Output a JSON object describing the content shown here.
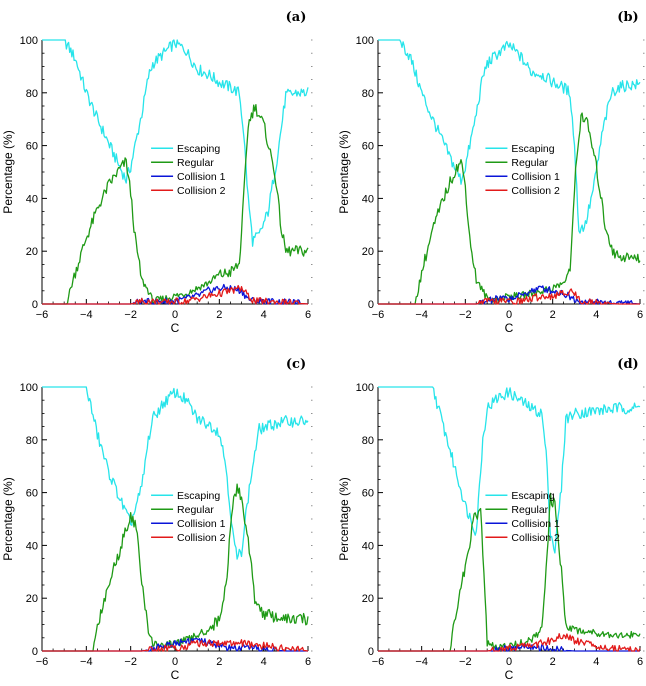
{
  "colors": {
    "escaping": "#27e4ea",
    "regular": "#1f9a16",
    "collision1": "#0a14d8",
    "collision2": "#e21a1a"
  },
  "chart_data": [
    {
      "type": "line",
      "label": "(a)",
      "xlabel": "C",
      "ylabel": "Percentage (%)",
      "xlim": [
        -6,
        6
      ],
      "ylim": [
        0,
        100
      ],
      "xticks": [
        -6,
        -4,
        -2,
        0,
        2,
        4,
        6
      ],
      "yticks": [
        0,
        20,
        40,
        60,
        80,
        100
      ],
      "legend_location": "center",
      "series": [
        {
          "name": "Escaping",
          "color_key": "escaping",
          "x": [
            -6,
            -5,
            -4.5,
            -4,
            -3.5,
            -3,
            -2.5,
            -2.2,
            -2,
            -1.5,
            -1.2,
            -1,
            -0.5,
            0,
            0.5,
            1,
            1.5,
            2,
            2.5,
            2.9,
            3.1,
            3.3,
            3.5,
            3.8,
            4.2,
            4.6,
            5,
            5.5,
            6
          ],
          "y": [
            100,
            100,
            93,
            80,
            70,
            61,
            52,
            47,
            52,
            72,
            86,
            91,
            95,
            99,
            96,
            89,
            87,
            84,
            82,
            80,
            65,
            40,
            24,
            26,
            35,
            55,
            79,
            80,
            80
          ]
        },
        {
          "name": "Regular",
          "color_key": "regular",
          "x": [
            -6,
            -4.9,
            -4.5,
            -4,
            -3.5,
            -3,
            -2.5,
            -2.2,
            -2,
            -1.8,
            -1.5,
            -1.2,
            -1,
            -0.5,
            0,
            0.5,
            1,
            1.5,
            2,
            2.5,
            2.9,
            3.1,
            3.3,
            3.6,
            4,
            4.5,
            4.8,
            5,
            5.5,
            6
          ],
          "y": [
            0,
            0,
            12,
            25,
            36,
            45,
            51,
            54,
            42,
            25,
            9,
            5,
            1,
            2,
            3,
            4,
            6,
            8,
            11,
            12,
            15,
            40,
            68,
            75,
            68,
            50,
            28,
            20,
            20,
            20
          ]
        },
        {
          "name": "Collision 1",
          "color_key": "collision1",
          "x": [
            -6,
            -2,
            -1.5,
            -1,
            -0.5,
            0,
            0.5,
            1,
            1.5,
            2,
            2.5,
            3,
            3.3,
            3.6,
            4,
            5,
            6
          ],
          "y": [
            0,
            0,
            1,
            0.5,
            1,
            1,
            2,
            3,
            5,
            6,
            6,
            5,
            2,
            1,
            1,
            0.5,
            0
          ]
        },
        {
          "name": "Collision 2",
          "color_key": "collision2",
          "x": [
            -6,
            -2,
            -1.5,
            -1,
            -0.5,
            0,
            0.5,
            1,
            1.5,
            2,
            2.5,
            3,
            3.3,
            3.6,
            4,
            5,
            6
          ],
          "y": [
            0,
            0,
            1,
            1,
            0.5,
            1,
            1,
            2,
            3,
            4,
            5,
            6,
            3,
            1,
            1,
            0.5,
            0
          ]
        }
      ]
    },
    {
      "type": "line",
      "label": "(b)",
      "xlabel": "C",
      "ylabel": "Percentage (%)",
      "xlim": [
        -6,
        6
      ],
      "ylim": [
        0,
        100
      ],
      "xticks": [
        -6,
        -4,
        -2,
        0,
        2,
        4,
        6
      ],
      "yticks": [
        0,
        20,
        40,
        60,
        80,
        100
      ],
      "legend_location": "center",
      "series": [
        {
          "name": "Escaping",
          "color_key": "escaping",
          "x": [
            -6,
            -5,
            -4.5,
            -4,
            -3.5,
            -3,
            -2.5,
            -2.2,
            -2,
            -1.5,
            -1.2,
            -1,
            -0.5,
            0,
            0.5,
            1,
            1.5,
            2,
            2.5,
            2.8,
            3,
            3.2,
            3.5,
            3.9,
            4.3,
            4.7,
            5,
            5.5,
            6
          ],
          "y": [
            100,
            100,
            93,
            80,
            70,
            61,
            52,
            47,
            52,
            72,
            86,
            91,
            95,
            98,
            94,
            88,
            87,
            84,
            82,
            80,
            60,
            28,
            30,
            45,
            66,
            80,
            82,
            83,
            83
          ]
        },
        {
          "name": "Regular",
          "color_key": "regular",
          "x": [
            -6,
            -4.3,
            -4,
            -3.5,
            -3,
            -2.5,
            -2.2,
            -2,
            -1.8,
            -1.5,
            -1.2,
            -1,
            -0.5,
            0,
            0.5,
            1,
            1.5,
            2,
            2.5,
            2.8,
            3,
            3.3,
            3.6,
            4,
            4.4,
            4.8,
            5.2,
            6
          ],
          "y": [
            0,
            0,
            12,
            28,
            40,
            50,
            54,
            45,
            25,
            9,
            5,
            2,
            2,
            3,
            3,
            4,
            5,
            6,
            8,
            12,
            45,
            72,
            68,
            52,
            30,
            19,
            18,
            17
          ]
        },
        {
          "name": "Collision 1",
          "color_key": "collision1",
          "x": [
            -6,
            -1.5,
            -1,
            -0.5,
            0,
            0.5,
            1,
            1.5,
            2,
            2.5,
            3,
            3.3,
            4,
            5,
            6
          ],
          "y": [
            0,
            0,
            1,
            2,
            2,
            3,
            5,
            6,
            5,
            4,
            2,
            1,
            0.5,
            0.5,
            0
          ]
        },
        {
          "name": "Collision 2",
          "color_key": "collision2",
          "x": [
            -6,
            -1.5,
            -1,
            -0.5,
            0,
            0.5,
            1,
            1.5,
            2,
            2.5,
            2.8,
            3,
            3.3,
            4,
            5,
            6
          ],
          "y": [
            0,
            0,
            1,
            1,
            1,
            1,
            2,
            3,
            3,
            4,
            5,
            4,
            1,
            0.5,
            0,
            0
          ]
        }
      ]
    },
    {
      "type": "line",
      "label": "(c)",
      "xlabel": "C",
      "ylabel": "Percentage (%)",
      "xlim": [
        -6,
        6
      ],
      "ylim": [
        0,
        100
      ],
      "xticks": [
        -6,
        -4,
        -2,
        0,
        2,
        4,
        6
      ],
      "yticks": [
        0,
        20,
        40,
        60,
        80,
        100
      ],
      "legend_location": "center",
      "series": [
        {
          "name": "Escaping",
          "color_key": "escaping",
          "x": [
            -6,
            -4,
            -3.5,
            -3,
            -2.5,
            -2,
            -1.5,
            -1.2,
            -1,
            -0.5,
            0,
            0.5,
            1,
            1.5,
            2,
            2.3,
            2.6,
            2.8,
            3,
            3.2,
            3.5,
            3.8,
            4.5,
            5,
            5.5,
            6
          ],
          "y": [
            100,
            100,
            82,
            68,
            58,
            48,
            62,
            80,
            88,
            94,
            98,
            95,
            88,
            86,
            83,
            70,
            45,
            35,
            38,
            52,
            70,
            84,
            86,
            87,
            87,
            87
          ]
        },
        {
          "name": "Regular",
          "color_key": "regular",
          "x": [
            -6,
            -3.7,
            -3.5,
            -3,
            -2.5,
            -2,
            -1.7,
            -1.5,
            -1.2,
            -1,
            -0.5,
            0,
            0.5,
            1,
            1.5,
            2,
            2.3,
            2.6,
            2.8,
            3,
            3.3,
            3.6,
            4,
            5,
            6
          ],
          "y": [
            0,
            0,
            10,
            25,
            38,
            52,
            45,
            25,
            8,
            3,
            2,
            3,
            4,
            6,
            8,
            12,
            25,
            55,
            62,
            58,
            42,
            20,
            14,
            12,
            12
          ]
        },
        {
          "name": "Collision 1",
          "color_key": "collision1",
          "x": [
            -6,
            -1.5,
            -1,
            -0.5,
            0,
            0.5,
            1,
            1.5,
            2,
            2.5,
            3,
            4,
            5,
            6
          ],
          "y": [
            0,
            0,
            1,
            2,
            3,
            4,
            4,
            3,
            2,
            1,
            1,
            0.5,
            0,
            0
          ]
        },
        {
          "name": "Collision 2",
          "color_key": "collision2",
          "x": [
            -6,
            -1.5,
            -1,
            -0.5,
            0,
            0.5,
            1,
            1.5,
            2,
            2.5,
            3,
            3.5,
            4,
            5,
            6
          ],
          "y": [
            0,
            0,
            0.5,
            1,
            1,
            2,
            3,
            3,
            3,
            3,
            3,
            2,
            2,
            1,
            0
          ]
        }
      ]
    },
    {
      "type": "line",
      "label": "(d)",
      "xlabel": "C",
      "ylabel": "Percentage (%)",
      "xlim": [
        -6,
        6
      ],
      "ylim": [
        0,
        100
      ],
      "xticks": [
        -6,
        -4,
        -2,
        0,
        2,
        4,
        6
      ],
      "yticks": [
        0,
        20,
        40,
        60,
        80,
        100
      ],
      "legend_location": "center",
      "series": [
        {
          "name": "Escaping",
          "color_key": "escaping",
          "x": [
            -6,
            -3.5,
            -3,
            -2.5,
            -2,
            -1.5,
            -1.2,
            -1,
            -0.5,
            0,
            0.5,
            1,
            1.5,
            1.7,
            1.9,
            2.1,
            2.4,
            2.6,
            3,
            4,
            5,
            6
          ],
          "y": [
            100,
            100,
            85,
            70,
            55,
            45,
            80,
            92,
            96,
            98,
            95,
            92,
            90,
            75,
            45,
            38,
            62,
            88,
            90,
            91,
            92,
            92
          ]
        },
        {
          "name": "Regular",
          "color_key": "regular",
          "x": [
            -6,
            -2.7,
            -2.5,
            -2,
            -1.6,
            -1.3,
            -1.1,
            -1,
            -0.5,
            0,
            0.5,
            1,
            1.5,
            1.7,
            1.9,
            2.1,
            2.4,
            2.6,
            3,
            4,
            5,
            6
          ],
          "y": [
            0,
            0,
            12,
            32,
            50,
            54,
            20,
            3,
            1,
            2,
            3,
            4,
            8,
            30,
            58,
            55,
            30,
            10,
            8,
            7,
            6,
            6
          ]
        },
        {
          "name": "Collision 1",
          "color_key": "collision1",
          "x": [
            -6,
            -1,
            0,
            0.5,
            1,
            1.5,
            2,
            3,
            6
          ],
          "y": [
            0,
            0,
            1,
            1.5,
            1.5,
            1,
            0.5,
            0,
            0
          ]
        },
        {
          "name": "Collision 2",
          "color_key": "collision2",
          "x": [
            -6,
            -1,
            0,
            0.5,
            1,
            1.5,
            2,
            2.4,
            3,
            3.5,
            4,
            5,
            6
          ],
          "y": [
            0,
            0,
            1,
            2,
            2,
            3,
            4,
            6,
            4,
            3,
            2,
            1,
            0.5
          ]
        }
      ]
    }
  ]
}
